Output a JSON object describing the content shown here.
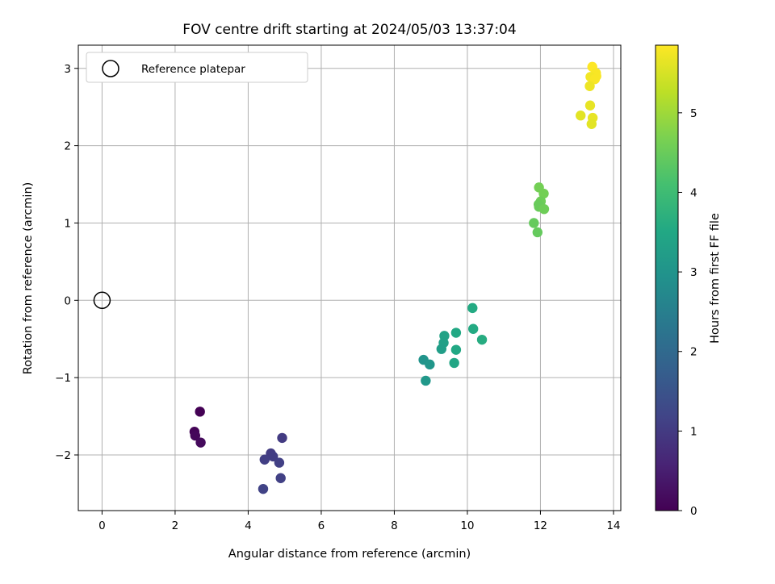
{
  "chart_data": {
    "type": "scatter",
    "title": "FOV centre drift starting at 2024/05/03 13:37:04",
    "xlabel": "Angular distance from reference (arcmin)",
    "ylabel": "Rotation from reference (arcmin)",
    "xlim": [
      -0.65,
      14.2
    ],
    "ylim": [
      -2.72,
      3.3
    ],
    "x_ticks": [
      0,
      2,
      4,
      6,
      8,
      10,
      12,
      14
    ],
    "y_ticks": [
      -2,
      -1,
      0,
      1,
      2,
      3
    ],
    "x_tick_labels": [
      "0",
      "2",
      "4",
      "6",
      "8",
      "10",
      "12",
      "14"
    ],
    "y_tick_labels": [
      "−2",
      "−1",
      "0",
      "1",
      "2",
      "3"
    ],
    "grid": true,
    "colormap": "viridis",
    "colorbar": {
      "label": "Hours from first FF file",
      "range": [
        0,
        5.85
      ],
      "ticks": [
        0,
        1,
        2,
        3,
        4,
        5
      ],
      "tick_labels": [
        "0",
        "1",
        "2",
        "3",
        "4",
        "5"
      ]
    },
    "legend": {
      "position": "upper left",
      "label": "Reference platepar"
    },
    "reference_point": {
      "x": 0,
      "y": 0
    },
    "points": [
      {
        "x": 2.68,
        "y": -1.44,
        "t": 0.0
      },
      {
        "x": 2.53,
        "y": -1.7,
        "t": 0.05
      },
      {
        "x": 2.55,
        "y": -1.75,
        "t": 0.1
      },
      {
        "x": 2.7,
        "y": -1.84,
        "t": 0.15
      },
      {
        "x": 4.93,
        "y": -1.78,
        "t": 1.0
      },
      {
        "x": 4.62,
        "y": -1.98,
        "t": 1.02
      },
      {
        "x": 4.68,
        "y": -2.02,
        "t": 1.05
      },
      {
        "x": 4.45,
        "y": -2.06,
        "t": 1.07
      },
      {
        "x": 4.85,
        "y": -2.1,
        "t": 1.1
      },
      {
        "x": 4.89,
        "y": -2.3,
        "t": 1.12
      },
      {
        "x": 4.41,
        "y": -2.44,
        "t": 1.15
      },
      {
        "x": 10.14,
        "y": -0.1,
        "t": 3.55
      },
      {
        "x": 10.16,
        "y": -0.37,
        "t": 3.55
      },
      {
        "x": 10.4,
        "y": -0.51,
        "t": 3.6
      },
      {
        "x": 9.69,
        "y": -0.42,
        "t": 3.5
      },
      {
        "x": 9.69,
        "y": -0.64,
        "t": 3.5
      },
      {
        "x": 9.64,
        "y": -0.81,
        "t": 3.45
      },
      {
        "x": 9.37,
        "y": -0.46,
        "t": 3.35
      },
      {
        "x": 9.35,
        "y": -0.55,
        "t": 3.3
      },
      {
        "x": 9.29,
        "y": -0.63,
        "t": 3.25
      },
      {
        "x": 8.8,
        "y": -0.77,
        "t": 3.0
      },
      {
        "x": 8.97,
        "y": -0.83,
        "t": 3.05
      },
      {
        "x": 8.86,
        "y": -1.04,
        "t": 3.1
      },
      {
        "x": 11.96,
        "y": 1.46,
        "t": 4.6
      },
      {
        "x": 12.09,
        "y": 1.38,
        "t": 4.6
      },
      {
        "x": 12.01,
        "y": 1.28,
        "t": 4.55
      },
      {
        "x": 11.95,
        "y": 1.24,
        "t": 4.5
      },
      {
        "x": 11.96,
        "y": 1.21,
        "t": 4.5
      },
      {
        "x": 12.1,
        "y": 1.18,
        "t": 4.55
      },
      {
        "x": 11.82,
        "y": 1.0,
        "t": 4.45
      },
      {
        "x": 11.92,
        "y": 0.88,
        "t": 4.45
      },
      {
        "x": 13.42,
        "y": 3.02,
        "t": 5.85
      },
      {
        "x": 13.52,
        "y": 2.94,
        "t": 5.8
      },
      {
        "x": 13.53,
        "y": 2.9,
        "t": 5.8
      },
      {
        "x": 13.37,
        "y": 2.89,
        "t": 5.75
      },
      {
        "x": 13.49,
        "y": 2.86,
        "t": 5.8
      },
      {
        "x": 13.35,
        "y": 2.77,
        "t": 5.7
      },
      {
        "x": 13.36,
        "y": 2.52,
        "t": 5.65
      },
      {
        "x": 13.43,
        "y": 2.36,
        "t": 5.65
      },
      {
        "x": 13.1,
        "y": 2.39,
        "t": 5.6
      },
      {
        "x": 13.4,
        "y": 2.28,
        "t": 5.6
      }
    ]
  }
}
